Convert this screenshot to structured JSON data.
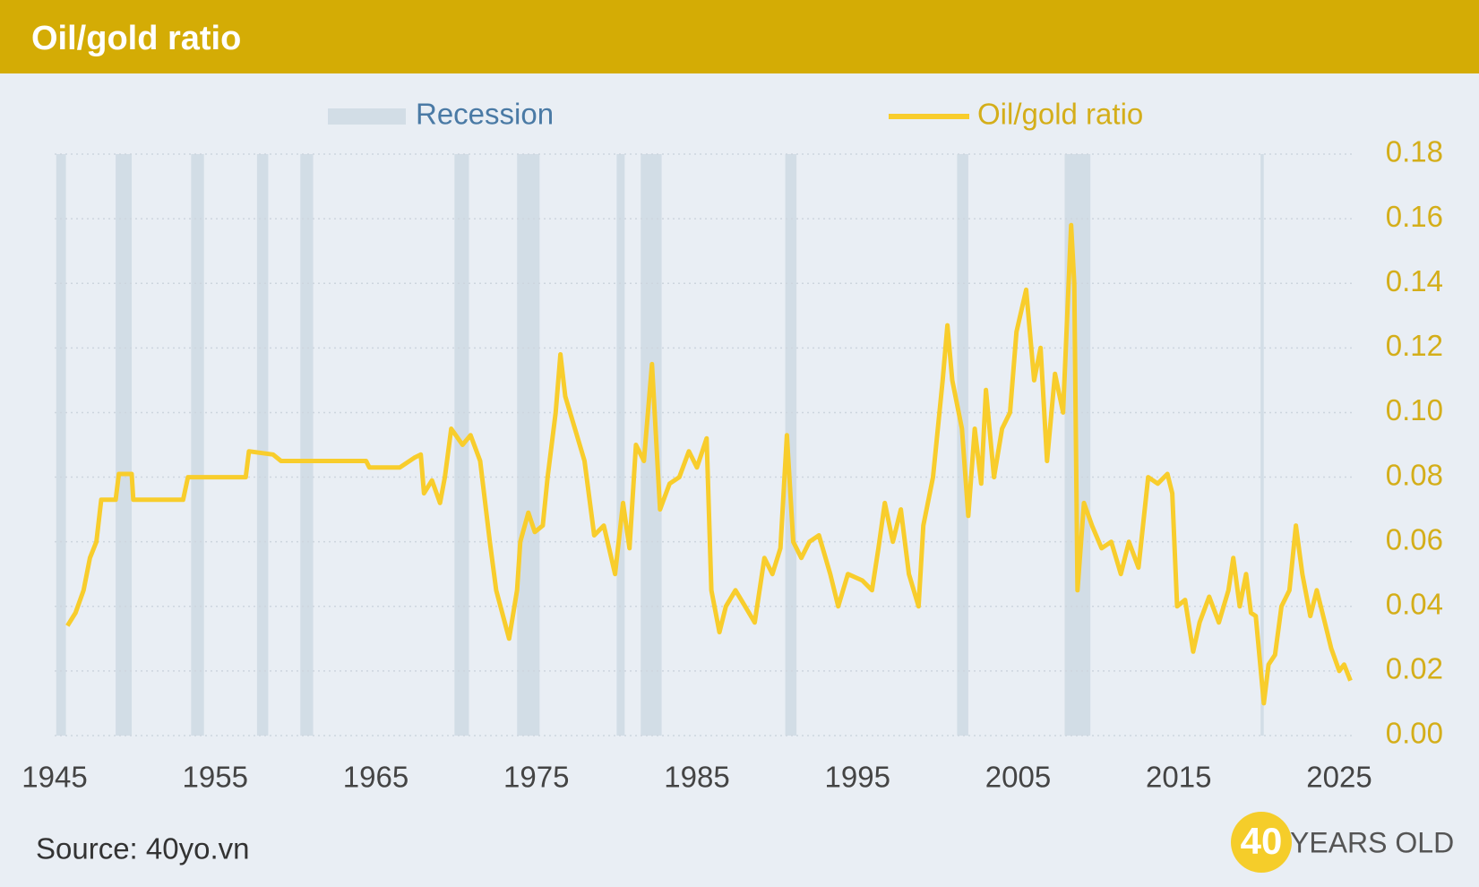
{
  "chart_data": {
    "type": "line",
    "title": "Oil/gold ratio",
    "source": "Source: 40yo.vn",
    "logo": {
      "number": "40",
      "text": "YEARS OLD"
    },
    "recession_name": "Recession",
    "recession_color": "#d2dde6",
    "recessions": [
      [
        1945.1,
        1945.7
      ],
      [
        1948.8,
        1949.8
      ],
      [
        1953.5,
        1954.3
      ],
      [
        1957.6,
        1958.3
      ],
      [
        1960.3,
        1961.1
      ],
      [
        1969.9,
        1970.8
      ],
      [
        1973.8,
        1975.2
      ],
      [
        1980.0,
        1980.5
      ],
      [
        1981.5,
        1982.8
      ],
      [
        1990.5,
        1991.2
      ],
      [
        2001.2,
        2001.9
      ],
      [
        2007.9,
        2009.5
      ],
      [
        2020.1,
        2020.3
      ]
    ],
    "x": [
      1945.8,
      1946.3,
      1946.8,
      1947.2,
      1947.6,
      1947.9,
      1948.8,
      1949.0,
      1949.8,
      1949.9,
      1953.0,
      1953.3,
      1956.9,
      1957.1,
      1958.6,
      1959.1,
      1964.4,
      1964.6,
      1966.5,
      1967.4,
      1967.8,
      1968.0,
      1968.5,
      1969.0,
      1969.3,
      1969.7,
      1970.4,
      1970.9,
      1971.5,
      1972.1,
      1972.5,
      1973.3,
      1973.8,
      1974.0,
      1974.5,
      1974.9,
      1975.4,
      1975.7,
      1976.2,
      1976.5,
      1976.8,
      1977.4,
      1978.0,
      1978.6,
      1979.2,
      1979.9,
      1980.4,
      1980.8,
      1981.2,
      1981.7,
      1982.2,
      1982.7,
      1983.3,
      1983.9,
      1984.5,
      1985.0,
      1985.6,
      1985.9,
      1986.4,
      1986.8,
      1987.4,
      1988.0,
      1988.6,
      1989.2,
      1989.7,
      1990.2,
      1990.6,
      1991.0,
      1991.5,
      1992.0,
      1992.6,
      1993.3,
      1993.8,
      1994.4,
      1995.3,
      1995.9,
      1996.3,
      1996.7,
      1997.2,
      1997.7,
      1998.2,
      1998.8,
      1999.1,
      1999.7,
      2000.0,
      2000.3,
      2000.6,
      2000.9,
      2001.5,
      2001.9,
      2002.3,
      2002.7,
      2003.0,
      2003.5,
      2004.0,
      2004.5,
      2004.9,
      2005.5,
      2006.0,
      2006.4,
      2006.8,
      2007.3,
      2007.8,
      2008.3,
      2008.5,
      2008.7,
      2009.1,
      2009.6,
      2010.2,
      2010.8,
      2011.4,
      2011.9,
      2012.5,
      2013.1,
      2013.7,
      2014.3,
      2014.6,
      2014.9,
      2015.4,
      2015.9,
      2016.3,
      2016.9,
      2017.5,
      2018.1,
      2018.4,
      2018.8,
      2019.2,
      2019.5,
      2019.8,
      2020.3,
      2020.6,
      2021.0,
      2021.4,
      2021.9,
      2022.3,
      2022.7,
      2023.2,
      2023.6,
      2024.1,
      2024.5,
      2025.0,
      2025.3,
      2025.7
    ],
    "series": [
      {
        "name": "Oil/gold ratio",
        "color": "#f8cd2c",
        "values": [
          0.034,
          0.038,
          0.045,
          0.055,
          0.06,
          0.073,
          0.073,
          0.081,
          0.081,
          0.073,
          0.073,
          0.08,
          0.08,
          0.088,
          0.087,
          0.085,
          0.085,
          0.083,
          0.083,
          0.086,
          0.087,
          0.075,
          0.079,
          0.072,
          0.08,
          0.095,
          0.09,
          0.093,
          0.085,
          0.06,
          0.045,
          0.03,
          0.045,
          0.06,
          0.069,
          0.063,
          0.065,
          0.08,
          0.1,
          0.118,
          0.105,
          0.095,
          0.085,
          0.062,
          0.065,
          0.05,
          0.072,
          0.058,
          0.09,
          0.085,
          0.115,
          0.07,
          0.078,
          0.08,
          0.088,
          0.083,
          0.092,
          0.045,
          0.032,
          0.04,
          0.045,
          0.04,
          0.035,
          0.055,
          0.05,
          0.058,
          0.093,
          0.06,
          0.055,
          0.06,
          0.062,
          0.05,
          0.04,
          0.05,
          0.048,
          0.045,
          0.058,
          0.072,
          0.06,
          0.07,
          0.05,
          0.04,
          0.065,
          0.08,
          0.095,
          0.11,
          0.127,
          0.11,
          0.095,
          0.068,
          0.095,
          0.078,
          0.107,
          0.08,
          0.095,
          0.1,
          0.125,
          0.138,
          0.11,
          0.12,
          0.085,
          0.112,
          0.1,
          0.158,
          0.14,
          0.045,
          0.072,
          0.065,
          0.058,
          0.06,
          0.05,
          0.06,
          0.052,
          0.08,
          0.078,
          0.081,
          0.075,
          0.04,
          0.042,
          0.026,
          0.035,
          0.043,
          0.035,
          0.045,
          0.055,
          0.04,
          0.05,
          0.038,
          0.037,
          0.01,
          0.022,
          0.025,
          0.04,
          0.045,
          0.065,
          0.05,
          0.037,
          0.045,
          0.035,
          0.027,
          0.02,
          0.022,
          0.017
        ]
      }
    ],
    "xlim": [
      1945,
      2026
    ],
    "xticks": [
      1945,
      1955,
      1965,
      1975,
      1985,
      1995,
      2005,
      2015,
      2025
    ],
    "ylim": [
      0,
      0.18
    ],
    "yticks": [
      {
        "value": 0,
        "label": "0.00"
      },
      {
        "value": 0.02,
        "label": "0.02"
      },
      {
        "value": 0.04,
        "label": "0.04"
      },
      {
        "value": 0.06,
        "label": "0.06"
      },
      {
        "value": 0.08,
        "label": "0.08"
      },
      {
        "value": 0.1,
        "label": "0.10"
      },
      {
        "value": 0.12,
        "label": "0.12"
      },
      {
        "value": 0.14,
        "label": "0.14"
      },
      {
        "value": 0.16,
        "label": "0.16"
      },
      {
        "value": 0.18,
        "label": "0.18"
      }
    ],
    "grid": true,
    "y_axis_side": "right"
  }
}
